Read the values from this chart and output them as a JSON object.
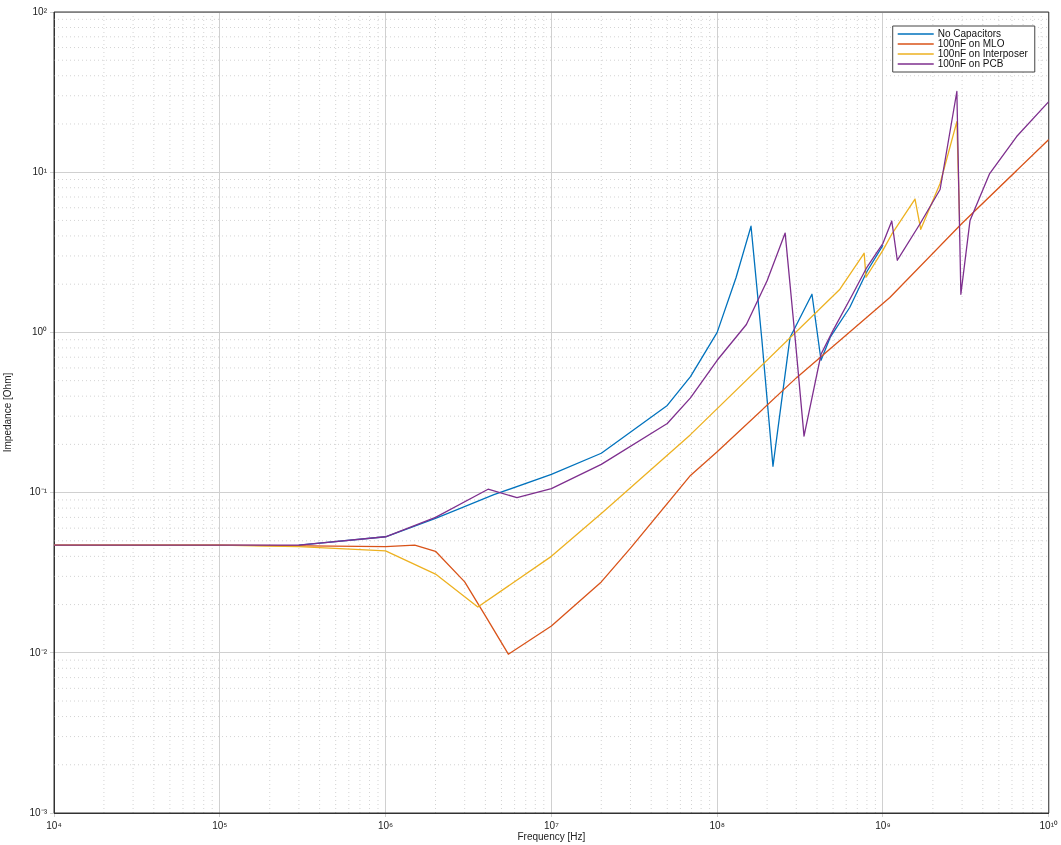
{
  "chart_data": {
    "type": "line",
    "xlabel": "Frequency [Hz]",
    "ylabel": "Impedance [Ohm]",
    "log": "xy",
    "grid": true,
    "legend": "top right",
    "marker": "none",
    "line_style": "solid",
    "xlim": [
      10000,
      10000000000
    ],
    "ylim": [
      0.001,
      100
    ],
    "xticks": [
      {
        "value": 10000,
        "label": "10⁴"
      },
      {
        "value": 100000,
        "label": "10⁵"
      },
      {
        "value": 1000000,
        "label": "10⁶"
      },
      {
        "value": 10000000,
        "label": "10⁷"
      },
      {
        "value": 100000000,
        "label": "10⁸"
      },
      {
        "value": 1000000000,
        "label": "10⁹"
      },
      {
        "value": 10000000000,
        "label": "10¹⁰"
      }
    ],
    "yticks": [
      {
        "value": 0.001,
        "label": "10⁻³"
      },
      {
        "value": 0.01,
        "label": "10⁻²"
      },
      {
        "value": 0.1,
        "label": "10⁻¹"
      },
      {
        "value": 1,
        "label": "10⁰"
      },
      {
        "value": 10,
        "label": "10¹"
      },
      {
        "value": 100,
        "label": "10²"
      }
    ],
    "series": [
      {
        "name": "No Capacitors",
        "color": "#0072bd",
        "x": [
          300000,
          1000000,
          2000000,
          4500000,
          10000000,
          20000000,
          50000000,
          69000000,
          100000000,
          130000000,
          160000000,
          186000000,
          217000000,
          246000000,
          275000000,
          373000000,
          423000000,
          480000000,
          630000000,
          800000000,
          1000000000
        ],
        "values": [
          0.047,
          0.053,
          0.069,
          0.097,
          0.13,
          0.176,
          0.35,
          0.53,
          1.0,
          2.2,
          4.6,
          0.9,
          0.146,
          0.39,
          0.93,
          1.73,
          0.67,
          0.93,
          1.43,
          2.4,
          3.5
        ]
      },
      {
        "name": "100nF on MLO",
        "color": "#d95319",
        "x": [
          10000,
          100000,
          1000000,
          1500000,
          2000000,
          3000000,
          4000000,
          5500000,
          10000000,
          20000000,
          30000000,
          69000000,
          100000000,
          300000000,
          1100000000,
          3000000000,
          10000000000
        ],
        "values": [
          0.047,
          0.047,
          0.046,
          0.047,
          0.043,
          0.0277,
          0.017,
          0.0098,
          0.0147,
          0.0277,
          0.045,
          0.128,
          0.18,
          0.52,
          1.65,
          4.8,
          16
        ]
      },
      {
        "name": "100nF on Interposer",
        "color": "#edb120",
        "x": [
          10000,
          100000,
          300000,
          1000000,
          2000000,
          3600000,
          10000000,
          20000000,
          69000000,
          550000000,
          770000000,
          790000000,
          1000000000,
          1130000000,
          1560000000,
          1690000000,
          2210000000,
          2790000000,
          2900000000
        ],
        "values": [
          0.047,
          0.047,
          0.046,
          0.0433,
          0.031,
          0.0193,
          0.04,
          0.074,
          0.23,
          1.86,
          3.12,
          2.21,
          3.26,
          4.1,
          6.8,
          4.4,
          8.5,
          20.7,
          4.9
        ]
      },
      {
        "name": "100nF on PCB",
        "color": "#7e2f8e",
        "x": [
          10000,
          100000,
          300000,
          1000000,
          2000000,
          4150000,
          6200000,
          10000000,
          20000000,
          50000000,
          69000000,
          100000000,
          150000000,
          200000000,
          257000000,
          295000000,
          334000000,
          423000000,
          500000000,
          650000000,
          800000000,
          1000000000,
          1130000000,
          1220000000,
          1670000000,
          2210000000,
          2790000000,
          2950000000,
          3350000000,
          4400000000,
          6400000000,
          10000000000
        ],
        "values": [
          0.047,
          0.047,
          0.047,
          0.053,
          0.07,
          0.105,
          0.093,
          0.106,
          0.15,
          0.27,
          0.39,
          0.67,
          1.12,
          2.1,
          4.17,
          0.93,
          0.225,
          0.73,
          1.03,
          1.7,
          2.55,
          3.6,
          4.96,
          2.82,
          4.75,
          7.8,
          31.9,
          1.73,
          5.0,
          9.8,
          16.7,
          27.6
        ]
      }
    ]
  }
}
